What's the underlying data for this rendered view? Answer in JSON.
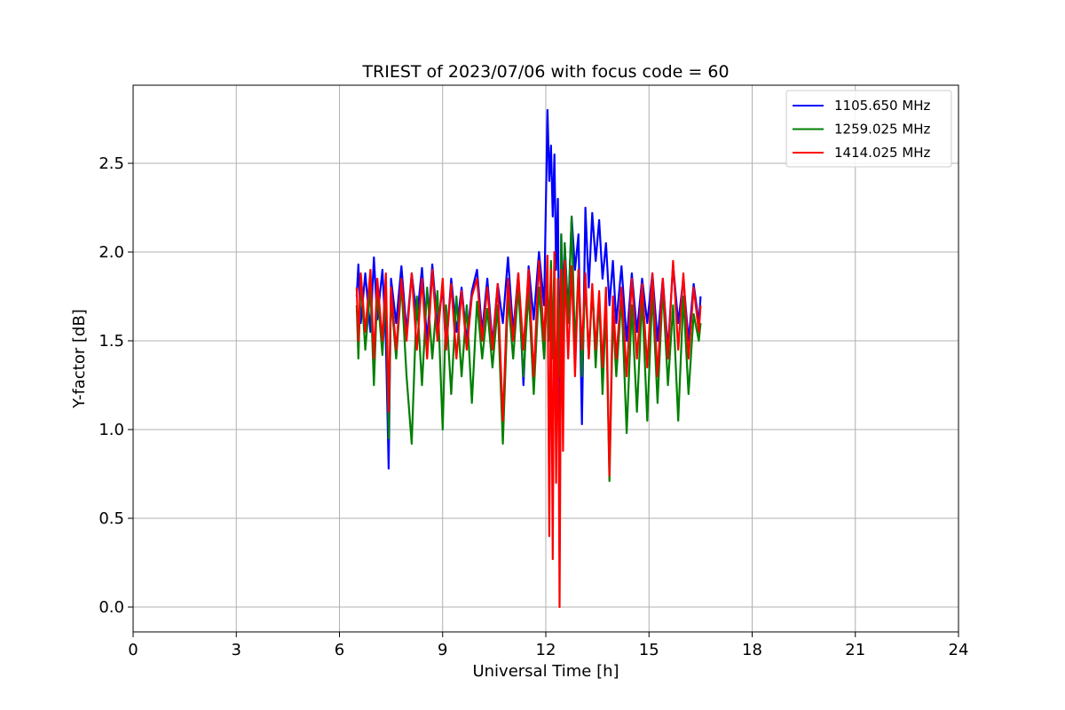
{
  "chart_data": {
    "type": "line",
    "title": "TRIEST of 2023/07/06 with focus code = 60",
    "xlabel": "Universal Time [h]",
    "ylabel": "Y-factor [dB]",
    "xlim": [
      0,
      24
    ],
    "ylim": [
      -0.14,
      2.94
    ],
    "xticks": [
      0,
      3,
      6,
      9,
      12,
      15,
      18,
      21,
      24
    ],
    "yticks": [
      0.0,
      0.5,
      1.0,
      1.5,
      2.0,
      2.5
    ],
    "ytick_labels": [
      "0.0",
      "0.5",
      "1.0",
      "1.5",
      "2.0",
      "2.5"
    ],
    "grid": true,
    "legend_position": "top-right",
    "series": [
      {
        "name": "1105.650 MHz",
        "color": "#0000ff",
        "x": [
          6.5,
          6.55,
          6.62,
          6.75,
          6.9,
          7.0,
          7.1,
          7.25,
          7.35,
          7.43,
          7.5,
          7.65,
          7.8,
          7.95,
          8.1,
          8.25,
          8.4,
          8.55,
          8.7,
          8.85,
          9.0,
          9.1,
          9.25,
          9.4,
          9.55,
          9.7,
          9.85,
          10.0,
          10.15,
          10.3,
          10.45,
          10.6,
          10.75,
          10.9,
          11.05,
          11.2,
          11.35,
          11.5,
          11.65,
          11.8,
          11.95,
          12.05,
          12.1,
          12.15,
          12.2,
          12.25,
          12.3,
          12.35,
          12.4,
          12.45,
          12.5,
          12.55,
          12.65,
          12.75,
          12.85,
          12.95,
          13.05,
          13.15,
          13.25,
          13.35,
          13.45,
          13.55,
          13.65,
          13.75,
          13.85,
          13.95,
          14.05,
          14.2,
          14.35,
          14.5,
          14.65,
          14.8,
          14.95,
          15.1,
          15.25,
          15.4,
          15.55,
          15.7,
          15.85,
          16.0,
          16.15,
          16.3,
          16.45,
          16.5
        ],
        "values": [
          1.75,
          1.93,
          1.6,
          1.88,
          1.55,
          1.97,
          1.62,
          1.9,
          1.5,
          0.78,
          1.85,
          1.6,
          1.92,
          1.55,
          1.88,
          1.62,
          1.91,
          1.5,
          1.93,
          1.58,
          1.8,
          1.45,
          1.85,
          1.55,
          1.8,
          1.5,
          1.78,
          1.9,
          1.55,
          1.85,
          1.48,
          1.82,
          1.6,
          1.97,
          1.55,
          1.88,
          1.25,
          1.92,
          1.62,
          2.0,
          1.7,
          2.8,
          2.4,
          2.6,
          2.2,
          2.55,
          1.9,
          2.3,
          1.0,
          2.1,
          1.7,
          2.05,
          1.65,
          2.2,
          1.9,
          2.1,
          1.03,
          2.25,
          1.8,
          2.22,
          1.95,
          2.18,
          1.85,
          2.05,
          1.7,
          1.95,
          1.6,
          1.92,
          1.5,
          1.88,
          1.55,
          1.85,
          1.6,
          1.88,
          1.5,
          1.85,
          1.45,
          1.93,
          1.6,
          1.85,
          1.5,
          1.82,
          1.6,
          1.75
        ]
      },
      {
        "name": "1259.025 MHz",
        "color": "#008000",
        "x": [
          6.5,
          6.55,
          6.62,
          6.75,
          6.9,
          7.0,
          7.1,
          7.25,
          7.35,
          7.43,
          7.5,
          7.65,
          7.8,
          7.95,
          8.1,
          8.25,
          8.4,
          8.55,
          8.7,
          8.85,
          9.0,
          9.1,
          9.25,
          9.4,
          9.55,
          9.7,
          9.85,
          10.0,
          10.15,
          10.3,
          10.45,
          10.6,
          10.75,
          10.9,
          11.05,
          11.2,
          11.35,
          11.5,
          11.65,
          11.8,
          11.95,
          12.05,
          12.1,
          12.15,
          12.2,
          12.25,
          12.3,
          12.35,
          12.4,
          12.45,
          12.5,
          12.55,
          12.65,
          12.75,
          12.85,
          12.95,
          13.05,
          13.15,
          13.25,
          13.35,
          13.45,
          13.55,
          13.65,
          13.75,
          13.85,
          13.95,
          14.05,
          14.2,
          14.35,
          14.5,
          14.65,
          14.8,
          14.95,
          15.1,
          15.25,
          15.4,
          15.55,
          15.7,
          15.85,
          16.0,
          16.15,
          16.3,
          16.45,
          16.5
        ],
        "values": [
          1.7,
          1.4,
          1.85,
          1.45,
          1.8,
          1.25,
          1.78,
          1.42,
          1.8,
          0.95,
          1.75,
          1.4,
          1.82,
          1.3,
          0.92,
          1.75,
          1.25,
          1.8,
          1.4,
          1.78,
          1.0,
          1.7,
          1.2,
          1.75,
          1.3,
          1.7,
          1.15,
          1.72,
          1.4,
          1.68,
          1.35,
          1.7,
          0.92,
          1.75,
          1.4,
          1.8,
          1.3,
          1.78,
          1.2,
          1.8,
          1.4,
          1.85,
          1.5,
          1.95,
          1.4,
          2.0,
          0.9,
          1.8,
          1.3,
          2.1,
          1.5,
          2.05,
          1.6,
          2.2,
          1.45,
          1.9,
          1.3,
          1.85,
          1.4,
          1.8,
          1.35,
          1.75,
          1.2,
          1.7,
          0.71,
          1.65,
          1.3,
          1.75,
          0.98,
          1.7,
          1.1,
          1.75,
          1.05,
          1.78,
          1.15,
          1.8,
          1.25,
          1.7,
          1.05,
          1.75,
          1.2,
          1.65,
          1.5,
          1.6
        ]
      },
      {
        "name": "1414.025 MHz",
        "color": "#ff0000",
        "x": [
          6.5,
          6.55,
          6.62,
          6.75,
          6.9,
          7.0,
          7.1,
          7.25,
          7.35,
          7.43,
          7.5,
          7.65,
          7.8,
          7.95,
          8.1,
          8.25,
          8.4,
          8.55,
          8.7,
          8.85,
          9.0,
          9.1,
          9.25,
          9.4,
          9.55,
          9.7,
          9.85,
          10.0,
          10.15,
          10.3,
          10.45,
          10.6,
          10.75,
          10.9,
          11.05,
          11.2,
          11.35,
          11.5,
          11.65,
          11.8,
          11.95,
          12.05,
          12.1,
          12.15,
          12.2,
          12.25,
          12.3,
          12.35,
          12.4,
          12.45,
          12.5,
          12.55,
          12.65,
          12.75,
          12.85,
          12.95,
          13.05,
          13.15,
          13.25,
          13.35,
          13.45,
          13.55,
          13.65,
          13.75,
          13.85,
          13.95,
          14.05,
          14.2,
          14.35,
          14.5,
          14.65,
          14.8,
          14.95,
          15.1,
          15.25,
          15.4,
          15.55,
          15.7,
          15.85,
          16.0,
          16.15,
          16.3,
          16.45,
          16.5
        ],
        "values": [
          1.8,
          1.5,
          1.88,
          1.55,
          1.9,
          1.4,
          1.85,
          1.5,
          1.88,
          1.1,
          1.8,
          1.45,
          1.85,
          1.5,
          1.88,
          1.45,
          1.85,
          1.4,
          1.9,
          1.5,
          1.85,
          1.45,
          1.82,
          1.4,
          1.78,
          1.45,
          1.75,
          1.85,
          1.5,
          1.8,
          1.45,
          1.82,
          1.05,
          1.85,
          1.5,
          1.88,
          1.45,
          1.9,
          1.3,
          1.95,
          1.5,
          1.98,
          0.4,
          1.9,
          0.27,
          2.0,
          0.7,
          1.85,
          0.0,
          1.9,
          0.88,
          1.95,
          1.4,
          1.92,
          1.3,
          1.9,
          1.45,
          1.88,
          1.4,
          1.82,
          1.45,
          1.78,
          1.35,
          1.8,
          0.74,
          1.75,
          1.4,
          1.8,
          1.3,
          1.85,
          1.4,
          1.82,
          1.35,
          1.88,
          1.3,
          1.85,
          1.4,
          1.95,
          1.45,
          1.88,
          1.4,
          1.8,
          1.55,
          1.7
        ]
      }
    ]
  }
}
